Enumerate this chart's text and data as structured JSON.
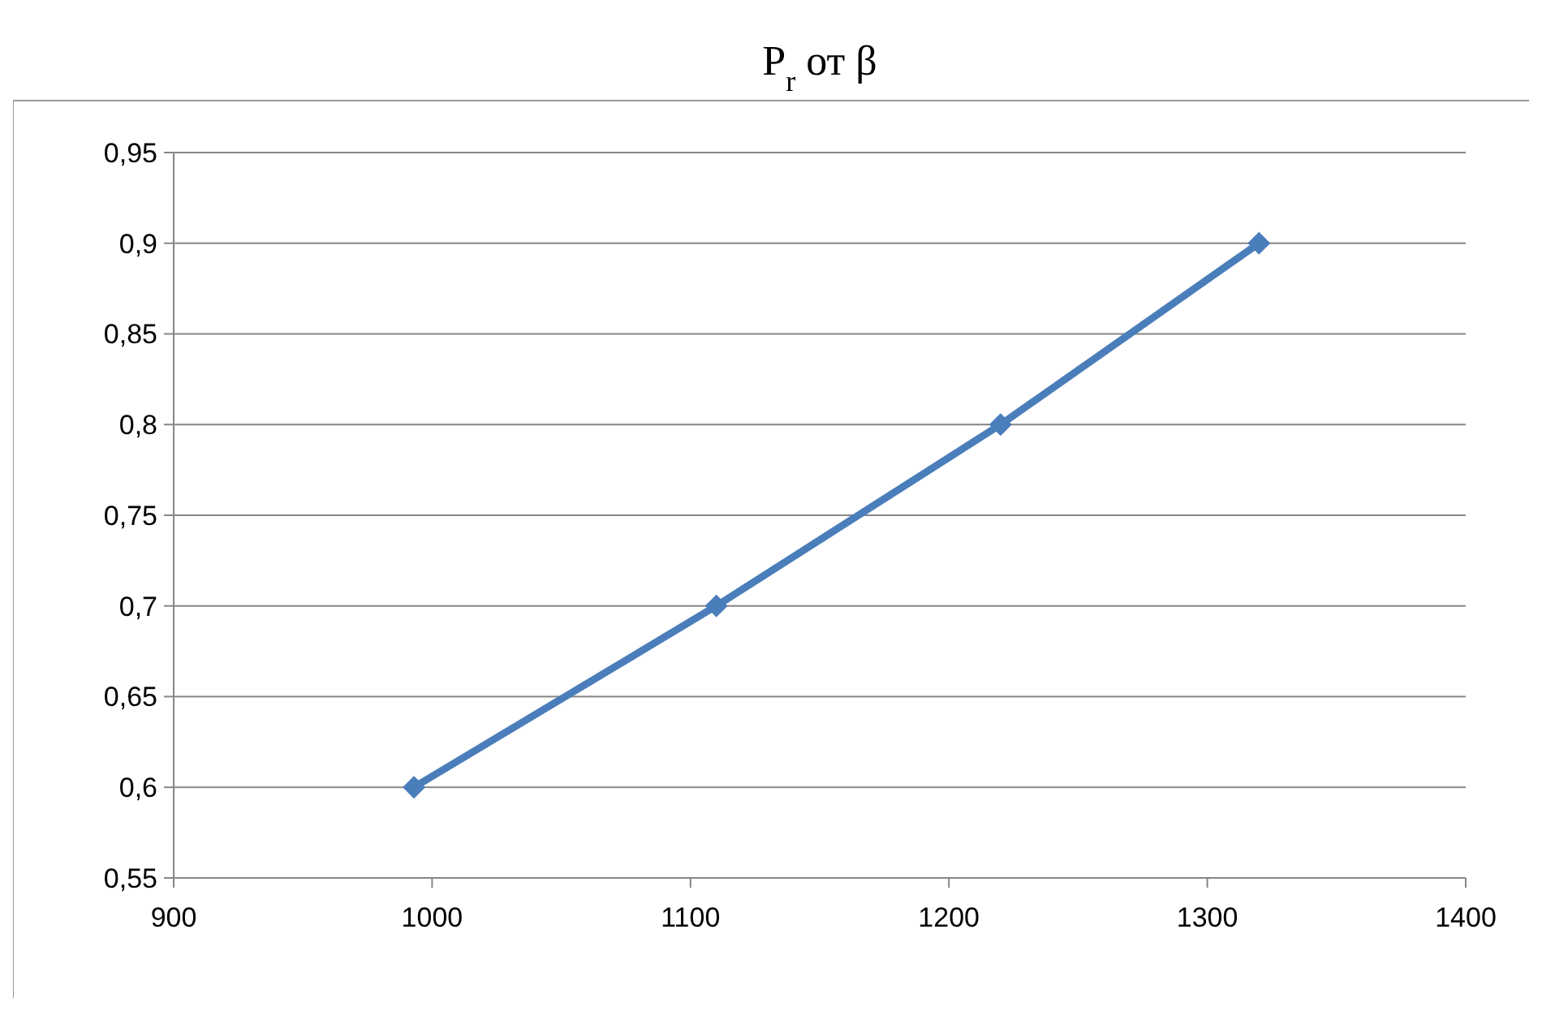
{
  "chart_data": {
    "type": "line",
    "title": "P$_{r}$ от β",
    "x": [
      993,
      1110,
      1220,
      1320
    ],
    "series": [
      {
        "color": "#4a7ebb",
        "values": [
          0.6,
          0.7,
          0.8,
          0.9
        ]
      }
    ],
    "xlim": [
      900,
      1400
    ],
    "xticks": [
      900,
      1000,
      1100,
      1200,
      1300,
      1400
    ],
    "ylim": [
      0.55,
      0.95
    ],
    "yticks": [
      {
        "value": 0.55,
        "label": "0,55"
      },
      {
        "value": 0.6,
        "label": "0,6"
      },
      {
        "value": 0.65,
        "label": "0,65"
      },
      {
        "value": 0.7,
        "label": "0,7"
      },
      {
        "value": 0.75,
        "label": "0,75"
      },
      {
        "value": 0.8,
        "label": "0,8"
      },
      {
        "value": 0.85,
        "label": "0,85"
      },
      {
        "value": 0.9,
        "label": "0,9"
      },
      {
        "value": 0.95,
        "label": "0,95"
      }
    ],
    "grid": "y",
    "marker": "diamond",
    "line_style": "solid"
  }
}
